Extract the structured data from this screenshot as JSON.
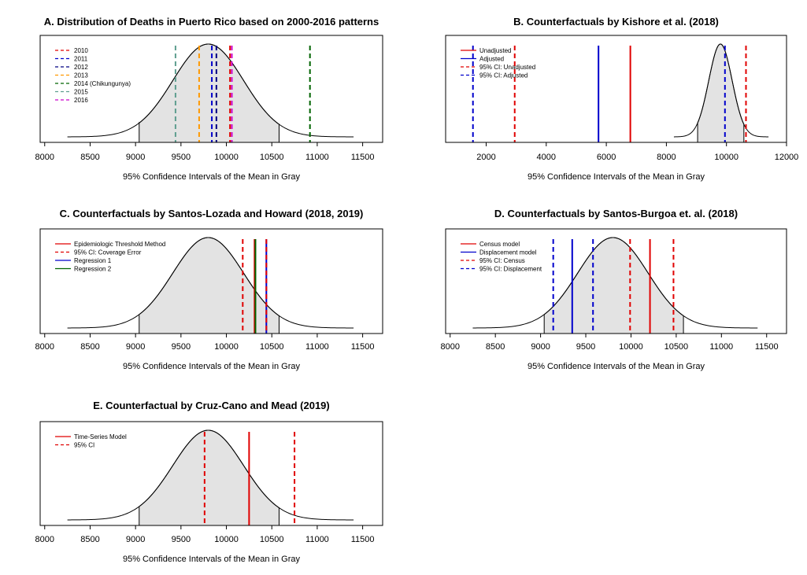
{
  "chart_data": [
    {
      "type": "line",
      "title": "A. Distribution of Deaths in Puerto Rico based on 2000-2016 patterns",
      "xlabel": "95% Confidence Intervals of the Mean in Gray",
      "xlim": [
        7950,
        11720
      ],
      "xticks": [
        8000,
        8500,
        9000,
        9500,
        10000,
        10500,
        11000,
        11500
      ],
      "distribution": {
        "mean": 9800,
        "sd": 390,
        "xmin": 8250,
        "xmax": 11400,
        "ci": [
          9040,
          10580
        ],
        "fill": "#e3e3e3"
      },
      "legend_position": "top-left",
      "vlines": [
        {
          "label": "2010",
          "x": 10040,
          "color": "#e00000",
          "dashed": true
        },
        {
          "label": "2011",
          "x": 9840,
          "color": "#0000cc",
          "dashed": true
        },
        {
          "label": "2012",
          "x": 9890,
          "color": "#000080",
          "dashed": true
        },
        {
          "label": "2013",
          "x": 9700,
          "color": "#ff9900",
          "dashed": true
        },
        {
          "label": "2014 (Chikungunya)",
          "x": 10920,
          "color": "#006400",
          "dashed": true
        },
        {
          "label": "2015",
          "x": 9440,
          "color": "#5f9e8f",
          "dashed": true
        },
        {
          "label": "2016",
          "x": 10060,
          "color": "#cc00cc",
          "dashed": true
        }
      ]
    },
    {
      "type": "line",
      "title": "B. Counterfactuals by Kishore et al. (2018)",
      "xlabel": "95% Confidence Intervals of the Mean in Gray",
      "xlim": [
        650,
        12000
      ],
      "xticks": [
        2000,
        4000,
        6000,
        8000,
        10000,
        12000
      ],
      "distribution": {
        "mean": 9800,
        "sd": 390,
        "xmin": 8250,
        "xmax": 11400,
        "ci": [
          9040,
          10580
        ],
        "fill": "#e3e3e3"
      },
      "legend_position": "top-left",
      "vlines": [
        {
          "label": "Unadjusted",
          "x": 6800,
          "color": "#e00000",
          "dashed": false
        },
        {
          "label": "Adjusted",
          "x": 5740,
          "color": "#0000cc",
          "dashed": false
        },
        {
          "label": "95% CI: Unadjusted",
          "x": 2950,
          "color": "#e00000",
          "dashed": true
        },
        {
          "label": "95% CI: Adjusted",
          "x": 1560,
          "color": "#0000cc",
          "dashed": true
        }
      ],
      "extra_vlines": [
        {
          "x": 10650,
          "color": "#e00000",
          "dashed": true
        },
        {
          "x": 9950,
          "color": "#0000cc",
          "dashed": true
        }
      ]
    },
    {
      "type": "line",
      "title": "C. Counterfactuals by Santos-Lozada and Howard (2018, 2019)",
      "xlabel": "95% Confidence Intervals of the Mean in Gray",
      "xlim": [
        7950,
        11720
      ],
      "xticks": [
        8000,
        8500,
        9000,
        9500,
        10000,
        10500,
        11000,
        11500
      ],
      "distribution": {
        "mean": 9800,
        "sd": 390,
        "xmin": 8250,
        "xmax": 11400,
        "ci": [
          9040,
          10580
        ],
        "fill": "#e3e3e3"
      },
      "legend_position": "top-left",
      "vlines": [
        {
          "label": "Epidemiologic Threshold Method",
          "x": 10310,
          "color": "#e00000",
          "dashed": false
        },
        {
          "label": "95% CI: Coverage Error",
          "x": 10180,
          "color": "#e00000",
          "dashed": true
        },
        {
          "label": "Regression 1",
          "x": 10440,
          "color": "#0000cc",
          "dashed": false
        },
        {
          "label": "Regression 2",
          "x": 10320,
          "color": "#006400",
          "dashed": false
        }
      ],
      "extra_vlines": [
        {
          "x": 10440,
          "color": "#e00000",
          "dashed": true
        }
      ]
    },
    {
      "type": "line",
      "title": "D. Counterfactuals by Santos-Burgoa et. al. (2018)",
      "xlabel": "95% Confidence Intervals of the Mean in Gray",
      "xlim": [
        7950,
        11720
      ],
      "xticks": [
        8000,
        8500,
        9000,
        9500,
        10000,
        10500,
        11000,
        11500
      ],
      "distribution": {
        "mean": 9800,
        "sd": 390,
        "xmin": 8250,
        "xmax": 11400,
        "ci": [
          9040,
          10580
        ],
        "fill": "#e3e3e3"
      },
      "legend_position": "top-left",
      "vlines": [
        {
          "label": "Census model",
          "x": 10210,
          "color": "#e00000",
          "dashed": false
        },
        {
          "label": "Displacement model",
          "x": 9350,
          "color": "#0000cc",
          "dashed": false
        },
        {
          "label": "95% CI: Census",
          "x": 9990,
          "color": "#e00000",
          "dashed": true
        },
        {
          "label": "95% CI: Displacement",
          "x": 9140,
          "color": "#0000cc",
          "dashed": true
        }
      ],
      "extra_vlines": [
        {
          "x": 10470,
          "color": "#e00000",
          "dashed": true
        },
        {
          "x": 9580,
          "color": "#0000cc",
          "dashed": true
        }
      ]
    },
    {
      "type": "line",
      "title": "E. Counterfactual by Cruz-Cano and Mead (2019)",
      "xlabel": "95% Confidence Intervals of the Mean in Gray",
      "xlim": [
        7950,
        11720
      ],
      "xticks": [
        8000,
        8500,
        9000,
        9500,
        10000,
        10500,
        11000,
        11500
      ],
      "distribution": {
        "mean": 9800,
        "sd": 390,
        "xmin": 8250,
        "xmax": 11400,
        "ci": [
          9040,
          10580
        ],
        "fill": "#e3e3e3"
      },
      "legend_position": "top-left",
      "vlines": [
        {
          "label": "Time-Series Model",
          "x": 10250,
          "color": "#e00000",
          "dashed": false
        },
        {
          "label": "95% CI",
          "x": 9760,
          "color": "#e00000",
          "dashed": true
        }
      ],
      "extra_vlines": [
        {
          "x": 10750,
          "color": "#e00000",
          "dashed": true
        }
      ]
    }
  ]
}
